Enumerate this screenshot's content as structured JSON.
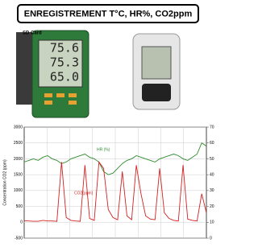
{
  "header": {
    "title": "ENREGISTREMENT T°C, HR%, CO2ppm"
  },
  "devices": {
    "card_label": "SD Card",
    "display": [
      "75.6",
      "75.3",
      "65.0"
    ]
  },
  "chart_data": {
    "type": "line",
    "y_label": "Concentration CO2 (ppm)",
    "x": [
      0,
      1,
      2,
      3,
      4,
      5,
      6,
      7,
      8,
      9,
      10,
      11,
      12,
      13,
      14,
      15,
      16,
      17,
      18,
      19,
      20,
      21,
      22,
      23,
      24,
      25,
      26,
      27,
      28,
      29,
      30,
      31,
      32,
      33,
      34,
      35,
      36,
      37,
      38,
      39
    ],
    "xlim": [
      0,
      39
    ],
    "ylim": [
      -500,
      3000
    ],
    "yticks": [
      -500,
      0,
      500,
      1000,
      1500,
      2000,
      2500,
      3000
    ],
    "y2lim": [
      0,
      70
    ],
    "y2ticks": [
      0,
      10,
      20,
      30,
      40,
      50,
      60,
      70
    ],
    "grid": true,
    "series": [
      {
        "name": "HR (%)",
        "color": "#2e8b2e",
        "axis": "y2",
        "values": [
          48,
          49,
          50,
          49,
          51,
          52,
          50,
          49,
          47,
          48,
          50,
          51,
          52,
          53,
          51,
          50,
          48,
          42,
          40,
          41,
          44,
          47,
          49,
          50,
          52,
          51,
          50,
          49,
          48,
          50,
          51,
          52,
          53,
          52,
          50,
          49,
          51,
          53,
          60,
          58
        ]
      },
      {
        "name": "CO2(ppm)",
        "color": "#d42020",
        "values": [
          50,
          40,
          30,
          30,
          60,
          40,
          40,
          30,
          1900,
          150,
          60,
          40,
          30,
          1800,
          120,
          60,
          1900,
          1700,
          400,
          150,
          80,
          1600,
          200,
          80,
          1800,
          900,
          200,
          100,
          80,
          1700,
          300,
          120,
          60,
          40,
          1800,
          100,
          60,
          40,
          900,
          300
        ]
      }
    ]
  }
}
